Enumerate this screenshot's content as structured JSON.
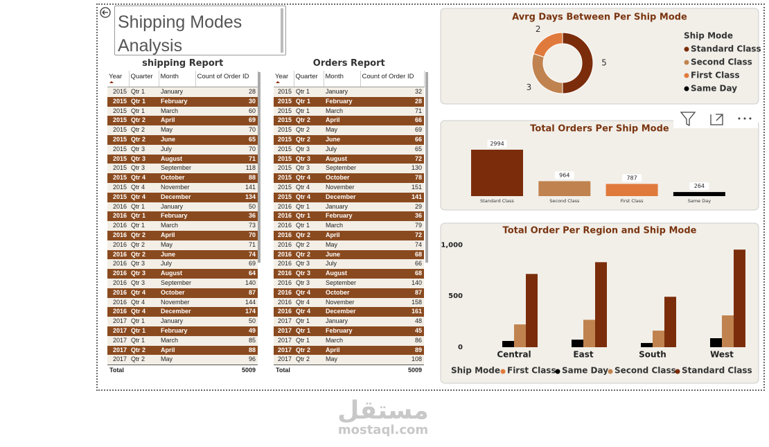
{
  "header": {
    "title": "Shipping Modes Analysis"
  },
  "tables": [
    {
      "title": "shipping Report",
      "columns": [
        "Year",
        "Quarter",
        "Month",
        "Count of Order ID"
      ],
      "rows": [
        [
          2015,
          "Qtr 1",
          "January",
          28
        ],
        [
          2015,
          "Qtr 1",
          "February",
          30
        ],
        [
          2015,
          "Qtr 1",
          "March",
          60
        ],
        [
          2015,
          "Qtr 2",
          "April",
          69
        ],
        [
          2015,
          "Qtr 2",
          "May",
          70
        ],
        [
          2015,
          "Qtr 2",
          "June",
          65
        ],
        [
          2015,
          "Qtr 3",
          "July",
          70
        ],
        [
          2015,
          "Qtr 3",
          "August",
          71
        ],
        [
          2015,
          "Qtr 3",
          "September",
          118
        ],
        [
          2015,
          "Qtr 4",
          "October",
          88
        ],
        [
          2015,
          "Qtr 4",
          "November",
          141
        ],
        [
          2015,
          "Qtr 4",
          "December",
          134
        ],
        [
          2016,
          "Qtr 1",
          "January",
          50
        ],
        [
          2016,
          "Qtr 1",
          "February",
          36
        ],
        [
          2016,
          "Qtr 1",
          "March",
          73
        ],
        [
          2016,
          "Qtr 2",
          "April",
          70
        ],
        [
          2016,
          "Qtr 2",
          "May",
          71
        ],
        [
          2016,
          "Qtr 2",
          "June",
          74
        ],
        [
          2016,
          "Qtr 3",
          "July",
          69
        ],
        [
          2016,
          "Qtr 3",
          "August",
          64
        ],
        [
          2016,
          "Qtr 3",
          "September",
          140
        ],
        [
          2016,
          "Qtr 4",
          "October",
          87
        ],
        [
          2016,
          "Qtr 4",
          "November",
          144
        ],
        [
          2016,
          "Qtr 4",
          "December",
          174
        ],
        [
          2017,
          "Qtr 1",
          "January",
          50
        ],
        [
          2017,
          "Qtr 1",
          "February",
          49
        ],
        [
          2017,
          "Qtr 1",
          "March",
          85
        ],
        [
          2017,
          "Qtr 2",
          "April",
          88
        ],
        [
          2017,
          "Qtr 2",
          "May",
          96
        ]
      ],
      "total_label": "Total",
      "total": 5009
    },
    {
      "title": "Orders Report",
      "columns": [
        "Year",
        "Quarter",
        "Month",
        "Count of Order ID"
      ],
      "rows": [
        [
          2015,
          "Qtr 1",
          "January",
          32
        ],
        [
          2015,
          "Qtr 1",
          "February",
          28
        ],
        [
          2015,
          "Qtr 1",
          "March",
          71
        ],
        [
          2015,
          "Qtr 2",
          "April",
          66
        ],
        [
          2015,
          "Qtr 2",
          "May",
          69
        ],
        [
          2015,
          "Qtr 2",
          "June",
          66
        ],
        [
          2015,
          "Qtr 3",
          "July",
          65
        ],
        [
          2015,
          "Qtr 3",
          "August",
          72
        ],
        [
          2015,
          "Qtr 3",
          "September",
          130
        ],
        [
          2015,
          "Qtr 4",
          "October",
          78
        ],
        [
          2015,
          "Qtr 4",
          "November",
          151
        ],
        [
          2015,
          "Qtr 4",
          "December",
          141
        ],
        [
          2016,
          "Qtr 1",
          "January",
          29
        ],
        [
          2016,
          "Qtr 1",
          "February",
          36
        ],
        [
          2016,
          "Qtr 1",
          "March",
          79
        ],
        [
          2016,
          "Qtr 2",
          "April",
          72
        ],
        [
          2016,
          "Qtr 2",
          "May",
          74
        ],
        [
          2016,
          "Qtr 2",
          "June",
          68
        ],
        [
          2016,
          "Qtr 3",
          "July",
          66
        ],
        [
          2016,
          "Qtr 3",
          "August",
          68
        ],
        [
          2016,
          "Qtr 3",
          "September",
          140
        ],
        [
          2016,
          "Qtr 4",
          "October",
          87
        ],
        [
          2016,
          "Qtr 4",
          "November",
          158
        ],
        [
          2016,
          "Qtr 4",
          "December",
          161
        ],
        [
          2017,
          "Qtr 1",
          "January",
          48
        ],
        [
          2017,
          "Qtr 1",
          "February",
          45
        ],
        [
          2017,
          "Qtr 1",
          "March",
          86
        ],
        [
          2017,
          "Qtr 2",
          "April",
          89
        ],
        [
          2017,
          "Qtr 2",
          "May",
          108
        ]
      ],
      "total_label": "Total",
      "total": 5009
    }
  ],
  "chart_data": [
    {
      "type": "donut",
      "title": "Avrg Days Between Per Ship Mode",
      "legend_title": "Ship Mode",
      "categories": [
        "Standard Class",
        "Second Class",
        "First Class",
        "Same Day"
      ],
      "values": [
        5,
        3,
        2,
        0
      ],
      "colors": [
        "#7b2d0b",
        "#c0834f",
        "#e07a3c",
        "#000000"
      ],
      "legend": "right"
    },
    {
      "type": "bar",
      "title": "Total Orders Per Ship Mode",
      "categories": [
        "Standard Class",
        "Second Class",
        "First Class",
        "Same Day"
      ],
      "values": [
        2994,
        964,
        787,
        264
      ],
      "colors": [
        "#7b2d0b",
        "#c0834f",
        "#e07a3c",
        "#000000"
      ]
    },
    {
      "type": "grouped_bar",
      "title": "Total Order Per Region and Ship Mode",
      "legend_title": "Ship Mode",
      "categories": [
        "Central",
        "East",
        "South",
        "West"
      ],
      "series": [
        {
          "name": "First Class",
          "color": "#e07a3c",
          "values": [
            null,
            null,
            null,
            null
          ]
        },
        {
          "name": "Same Day",
          "color": "#000000",
          "values": [
            61,
            74,
            41,
            88
          ]
        },
        {
          "name": "Second Class",
          "color": "#c0834f",
          "values": [
            223,
            268,
            162,
            311
          ]
        },
        {
          "name": "Standard Class",
          "color": "#7b2d0b",
          "values": [
            716,
            831,
            493,
            954
          ]
        }
      ],
      "ylim": [
        0,
        1050
      ],
      "yticks": [
        0,
        500,
        {
          "value": 1000,
          "label": "1,000"
        }
      ],
      "grid": false,
      "legend": "bottom"
    }
  ],
  "watermark": {
    "logo": "مستقل",
    "site": "mostaql.com"
  }
}
